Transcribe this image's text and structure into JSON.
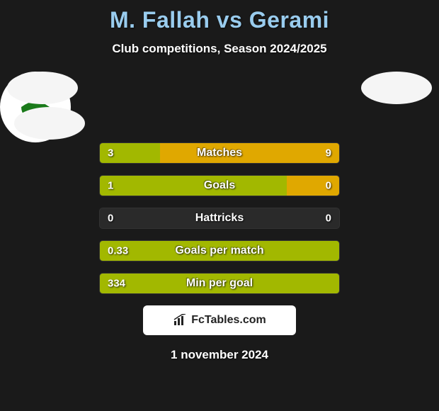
{
  "title_color": "#99ccee",
  "player1": "M. Fallah",
  "player2": "Gerami",
  "subtitle": "Club competitions, Season 2024/2025",
  "left_color": "#a2b800",
  "right_color": "#e0a800",
  "empty_color": "#2a2a2a",
  "row_width": 340,
  "bar_fontsize": 16,
  "badge_p2_logo_colors": {
    "top": "#d22",
    "mid": "#fff",
    "leaf": "#1a7a1a",
    "ribbon": "#165",
    "text": "#165"
  },
  "rows": [
    {
      "label": "Matches",
      "left_val": "3",
      "right_val": "9",
      "left_pct": 25,
      "right_pct": 75
    },
    {
      "label": "Goals",
      "left_val": "1",
      "right_val": "0",
      "left_pct": 78,
      "right_pct": 22
    },
    {
      "label": "Hattricks",
      "left_val": "0",
      "right_val": "0",
      "left_pct": 0,
      "right_pct": 0
    },
    {
      "label": "Goals per match",
      "left_val": "0.33",
      "right_val": "",
      "left_pct": 100,
      "right_pct": 0
    },
    {
      "label": "Min per goal",
      "left_val": "334",
      "right_val": "",
      "left_pct": 100,
      "right_pct": 0
    }
  ],
  "attribution": "FcTables.com",
  "date": "1 november 2024"
}
